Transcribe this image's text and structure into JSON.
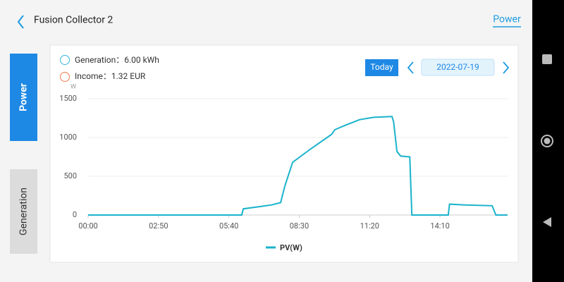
{
  "header": {
    "title": "Fusion Collector 2",
    "tab": "Power"
  },
  "side_tabs": [
    "Power",
    "Generation"
  ],
  "summary": {
    "generation": "Generation：6.00 kWh",
    "income": "Income：1.32 EUR"
  },
  "date_picker": {
    "button": "Today",
    "date": "2022-07-19"
  },
  "chart_data": {
    "type": "line",
    "y_unit": "W",
    "x": [
      0,
      371,
      375,
      417,
      443,
      465,
      475,
      494,
      537,
      588,
      596,
      622,
      656,
      690,
      734,
      738,
      746,
      755,
      777,
      782,
      870,
      873,
      911,
      976,
      985,
      1013
    ],
    "series": [
      {
        "name": "PV(W)",
        "color": "#1ab3cc",
        "values": [
          0,
          0,
          80,
          110,
          130,
          160,
          370,
          680,
          850,
          1040,
          1100,
          1160,
          1230,
          1260,
          1270,
          1200,
          820,
          760,
          750,
          0,
          0,
          140,
          130,
          120,
          0,
          0
        ]
      }
    ],
    "xlim": [
      0,
      1015
    ],
    "xticks": [
      {
        "value": 0,
        "label": "00:00"
      },
      {
        "value": 170,
        "label": "02:50"
      },
      {
        "value": 340,
        "label": "05:40"
      },
      {
        "value": 510,
        "label": "08:30"
      },
      {
        "value": 680,
        "label": "11:20"
      },
      {
        "value": 850,
        "label": "14:10"
      }
    ],
    "ylim": [
      0,
      1500
    ],
    "yticks": [
      0,
      500,
      1000,
      1500
    ],
    "grid": true
  }
}
